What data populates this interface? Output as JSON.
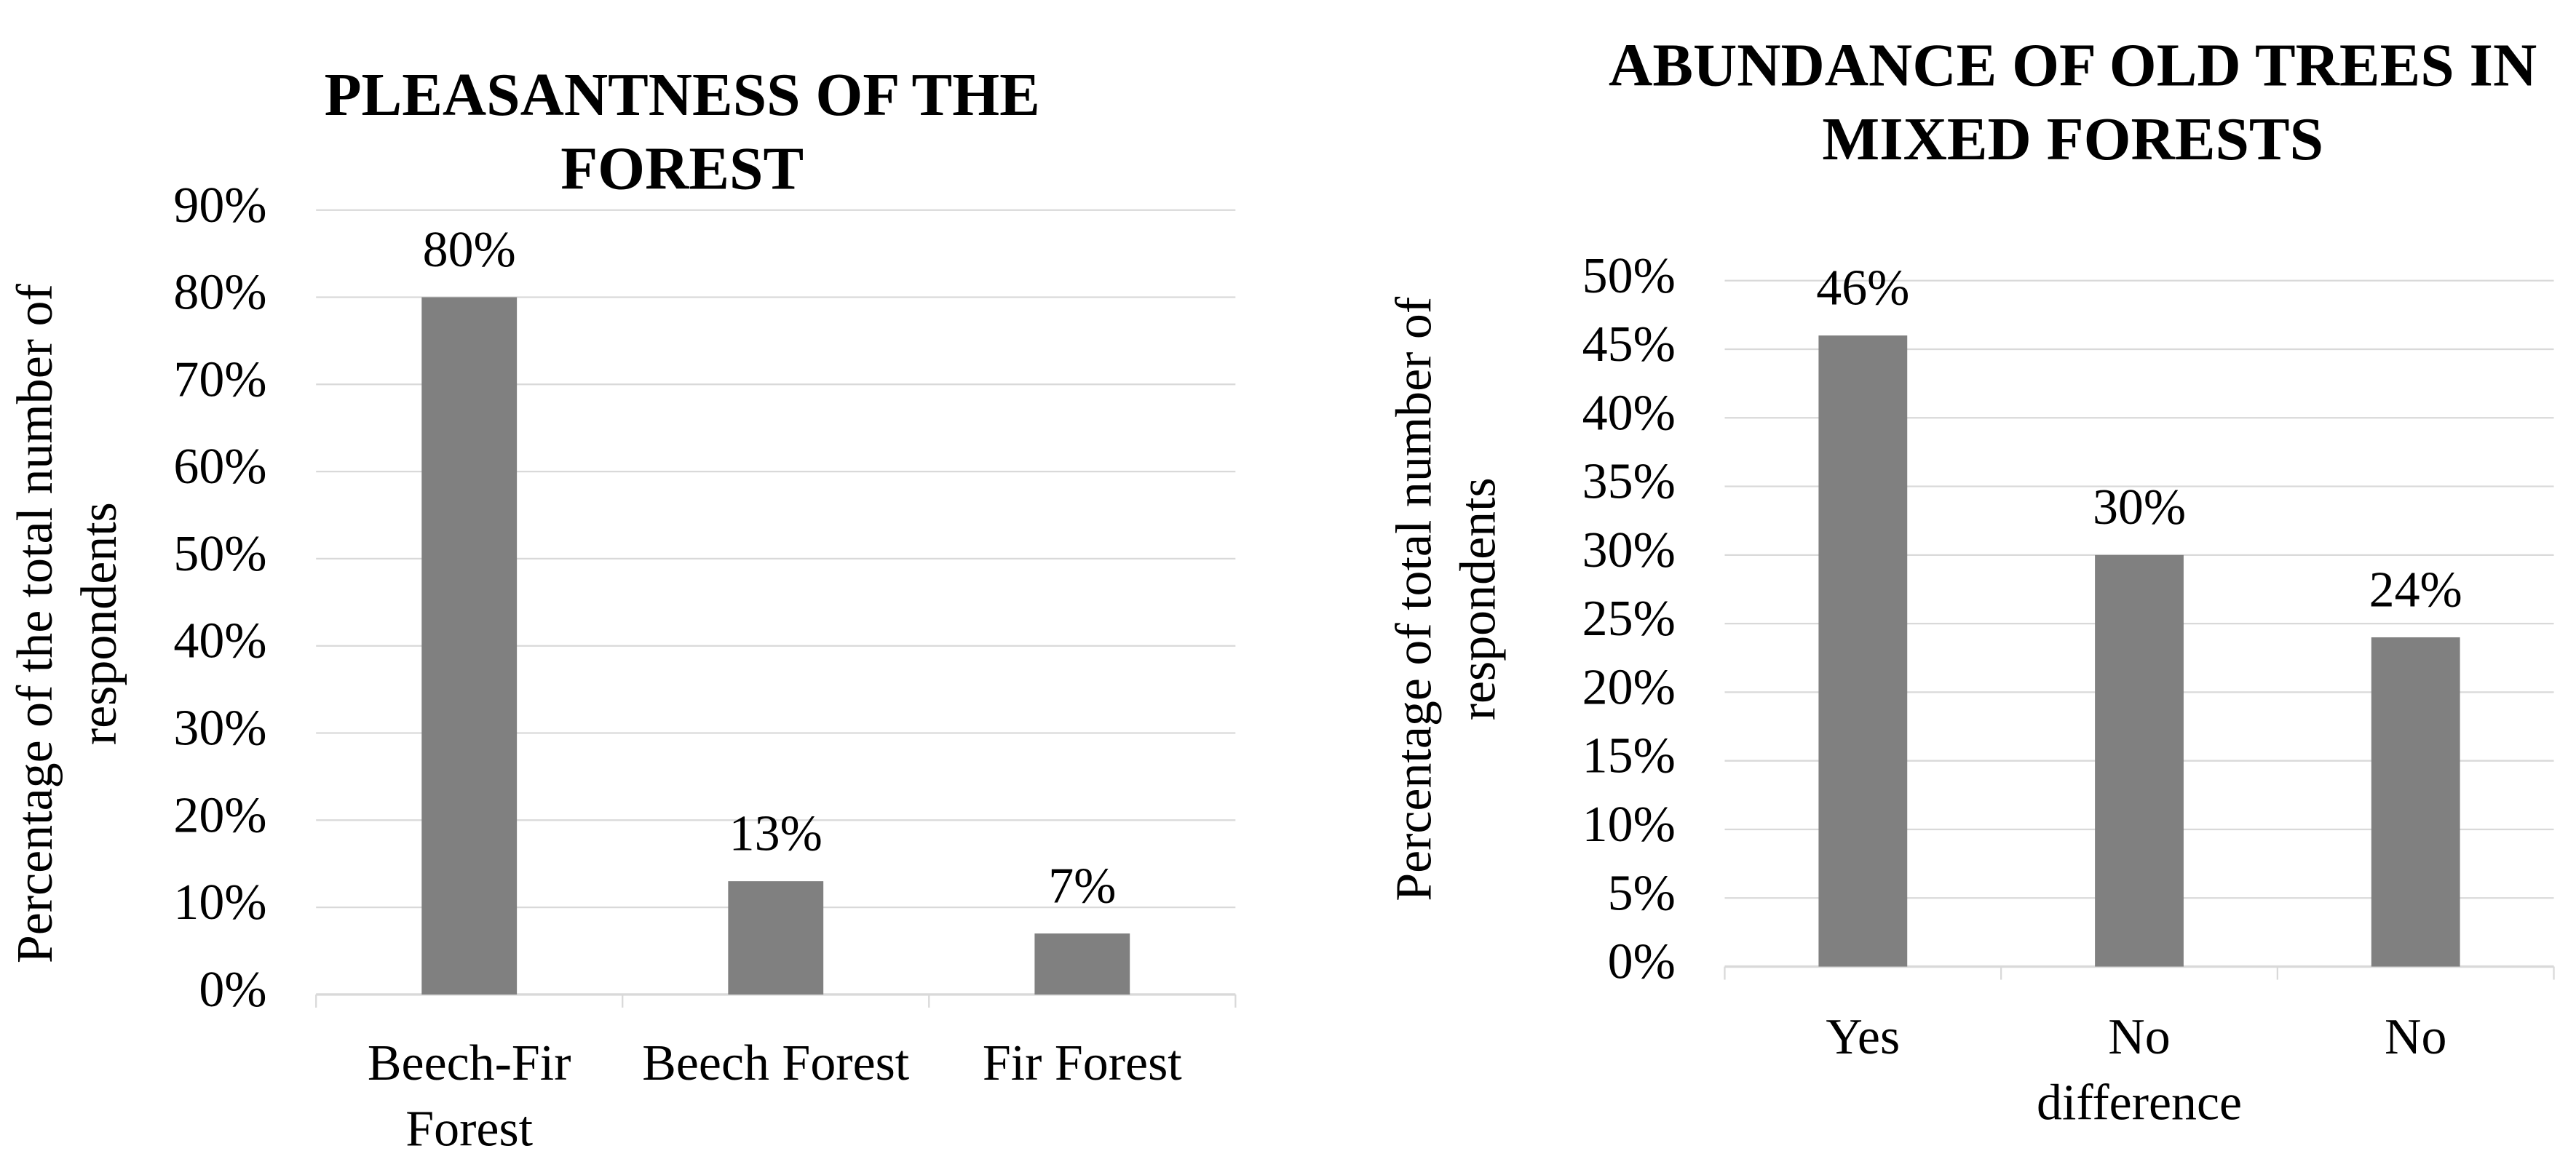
{
  "chart_data": [
    {
      "type": "bar",
      "title": "PLEASANTNESS OF THE FOREST",
      "y_label": "Percentage of the total number of respondents",
      "categories": [
        "Beech-Fir Forest",
        "Beech Forest",
        "Fir Forest"
      ],
      "values": [
        80,
        13,
        7
      ],
      "value_labels": [
        "80%",
        "13%",
        "7%"
      ],
      "color": "#808080",
      "ylim": [
        0,
        90
      ],
      "yticks": [
        {
          "value": 0,
          "label": "0%"
        },
        {
          "value": 10,
          "label": "10%"
        },
        {
          "value": 20,
          "label": "20%"
        },
        {
          "value": 30,
          "label": "30%"
        },
        {
          "value": 40,
          "label": "40%"
        },
        {
          "value": 50,
          "label": "50%"
        },
        {
          "value": 60,
          "label": "60%"
        },
        {
          "value": 70,
          "label": "70%"
        },
        {
          "value": 80,
          "label": "80%"
        },
        {
          "value": 90,
          "label": "90%"
        }
      ],
      "grid": true
    },
    {
      "type": "bar",
      "title": "ABUNDANCE OF OLD TREES IN MIXED FORESTS",
      "y_label": "Percentage of total number of respondents",
      "categories": [
        "Yes",
        "No difference",
        "No"
      ],
      "values": [
        46,
        30,
        24
      ],
      "value_labels": [
        "46%",
        "30%",
        "24%"
      ],
      "color": "#808080",
      "ylim": [
        0,
        50
      ],
      "yticks": [
        {
          "value": 0,
          "label": "0%"
        },
        {
          "value": 5,
          "label": "5%"
        },
        {
          "value": 10,
          "label": "10%"
        },
        {
          "value": 15,
          "label": "15%"
        },
        {
          "value": 20,
          "label": "20%"
        },
        {
          "value": 25,
          "label": "25%"
        },
        {
          "value": 30,
          "label": "30%"
        },
        {
          "value": 35,
          "label": "35%"
        },
        {
          "value": 40,
          "label": "40%"
        },
        {
          "value": 45,
          "label": "45%"
        },
        {
          "value": 50,
          "label": "50%"
        }
      ],
      "grid": true
    }
  ]
}
